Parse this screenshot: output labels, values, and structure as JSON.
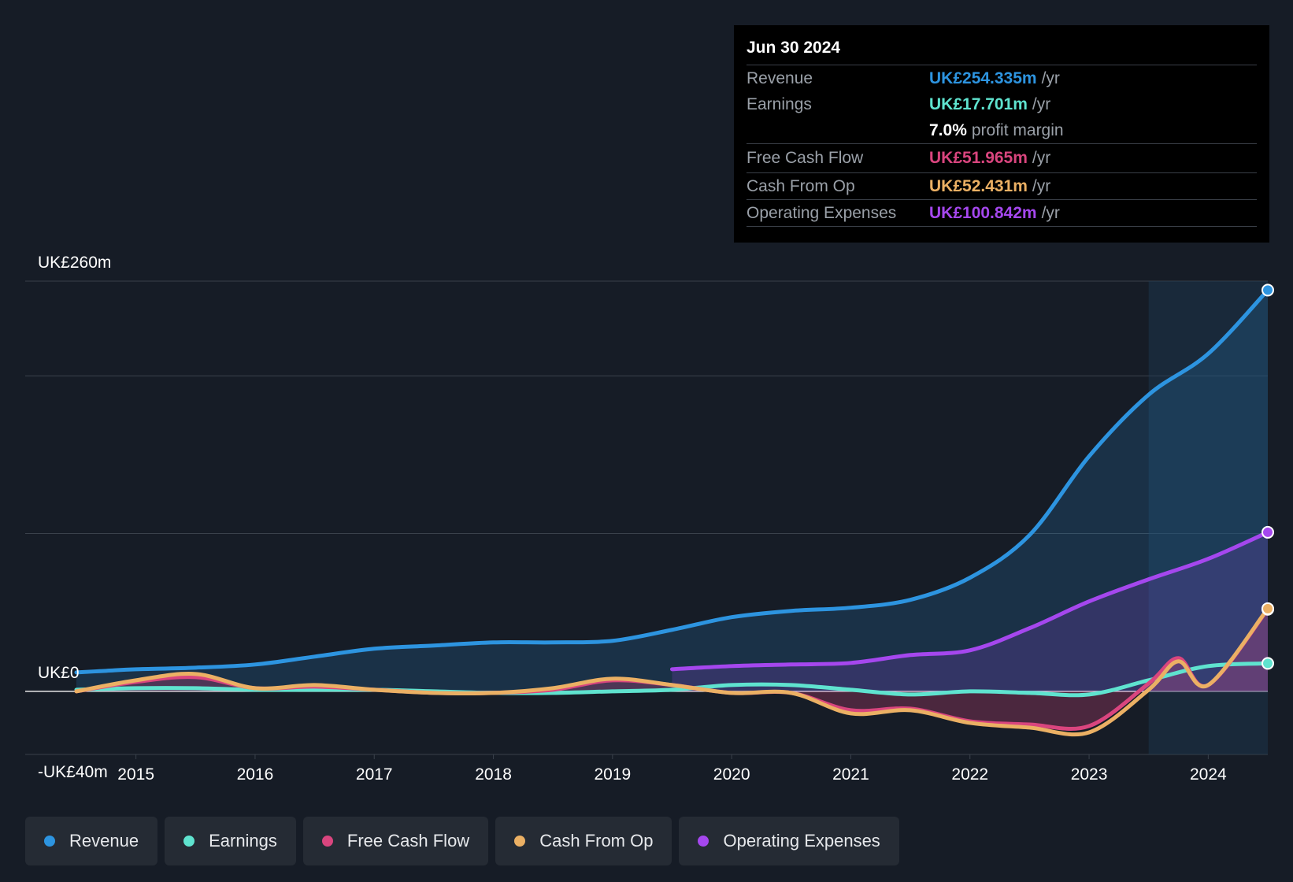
{
  "tooltip": {
    "date": "Jun 30 2024",
    "rows": [
      {
        "label": "Revenue",
        "value": "UK£254.335m",
        "suffix": "/yr",
        "color": "#2d94e0"
      },
      {
        "label": "Earnings",
        "value": "UK£17.701m",
        "suffix": "/yr",
        "color": "#5fe3cf"
      },
      {
        "label": "",
        "value": "7.0%",
        "suffix": "profit margin",
        "color": "#ffffff"
      },
      {
        "label": "Free Cash Flow",
        "value": "UK£51.965m",
        "suffix": "/yr",
        "color": "#d9457e"
      },
      {
        "label": "Cash From Op",
        "value": "UK£52.431m",
        "suffix": "/yr",
        "color": "#ebb064"
      },
      {
        "label": "Operating Expenses",
        "value": "UK£100.842m",
        "suffix": "/yr",
        "color": "#a547ee"
      }
    ]
  },
  "legend": [
    {
      "label": "Revenue",
      "color": "#2d94e0"
    },
    {
      "label": "Earnings",
      "color": "#5fe3cf"
    },
    {
      "label": "Free Cash Flow",
      "color": "#d9457e"
    },
    {
      "label": "Cash From Op",
      "color": "#ebb064"
    },
    {
      "label": "Operating Expenses",
      "color": "#a547ee"
    }
  ],
  "chart_data": {
    "type": "line",
    "title": "",
    "y_labels": [
      "UK£260m",
      "UK£0",
      "-UK£40m"
    ],
    "x_ticks": [
      "2015",
      "2016",
      "2017",
      "2018",
      "2019",
      "2020",
      "2021",
      "2022",
      "2023",
      "2024"
    ],
    "tick_values": [
      2015,
      2016,
      2017,
      2018,
      2019,
      2020,
      2021,
      2022,
      2023,
      2024
    ],
    "xlim": [
      2014.5,
      2024.5
    ],
    "ylim": [
      -40,
      260
    ],
    "gridlines": [
      260,
      200,
      100,
      0,
      -40
    ],
    "forecast_start": 2023.5,
    "series": [
      {
        "name": "Revenue",
        "color": "#2d94e0",
        "fill": true,
        "x": [
          2014.5,
          2014.75,
          2015,
          2015.5,
          2016,
          2016.5,
          2017,
          2017.5,
          2018,
          2018.5,
          2019,
          2019.5,
          2020,
          2020.5,
          2021,
          2021.5,
          2022,
          2022.5,
          2023,
          2023.5,
          2024,
          2024.5
        ],
        "y": [
          12,
          13,
          14,
          15,
          17,
          22,
          27,
          29,
          31,
          31,
          32,
          39,
          47,
          51,
          53,
          58,
          72,
          99,
          149,
          188,
          214,
          254.3
        ]
      },
      {
        "name": "Operating Expenses",
        "color": "#a547ee",
        "fill": true,
        "x": [
          2019.5,
          2020,
          2020.5,
          2021,
          2021.5,
          2022,
          2022.5,
          2023,
          2023.5,
          2024,
          2024.5
        ],
        "y": [
          14,
          16,
          17,
          18,
          23,
          26,
          40,
          57,
          71,
          84,
          100.8
        ]
      },
      {
        "name": "Earnings",
        "color": "#5fe3cf",
        "fill": false,
        "x": [
          2014.5,
          2015,
          2015.5,
          2016,
          2016.5,
          2017,
          2017.5,
          2018,
          2018.5,
          2019,
          2019.5,
          2020,
          2020.5,
          2021,
          2021.5,
          2022,
          2022.5,
          2023,
          2023.5,
          2024,
          2024.5
        ],
        "y": [
          1,
          2,
          2,
          1,
          1,
          1,
          0,
          -1,
          -1,
          0,
          1,
          4,
          4,
          1,
          -2,
          0,
          -1,
          -2,
          7,
          16,
          17.7
        ]
      },
      {
        "name": "Free Cash Flow",
        "color": "#d9457e",
        "fill": true,
        "x": [
          2014.5,
          2015,
          2015.5,
          2016,
          2016.5,
          2017,
          2017.5,
          2018,
          2018.5,
          2019,
          2019.5,
          2020,
          2020.5,
          2021,
          2021.5,
          2022,
          2022.5,
          2023,
          2023.5,
          2023.75,
          2024,
          2024.5
        ],
        "y": [
          0,
          6,
          9,
          2,
          3,
          1,
          -1,
          -1,
          1,
          7,
          4,
          -1,
          -1,
          -12,
          -11,
          -19,
          -21,
          -22,
          5,
          21,
          4,
          51.97
        ]
      },
      {
        "name": "Cash From Op",
        "color": "#ebb064",
        "fill": false,
        "x": [
          2014.5,
          2015,
          2015.5,
          2016,
          2016.5,
          2017,
          2017.5,
          2018,
          2018.5,
          2019,
          2019.5,
          2020,
          2020.5,
          2021,
          2021.5,
          2022,
          2022.5,
          2023,
          2023.5,
          2023.75,
          2024,
          2024.5
        ],
        "y": [
          0,
          7,
          11,
          2,
          4,
          1,
          -1,
          -1,
          2,
          8,
          4,
          -1,
          -1,
          -14,
          -12,
          -20,
          -23,
          -26,
          1,
          19,
          4,
          52.43
        ]
      }
    ]
  }
}
